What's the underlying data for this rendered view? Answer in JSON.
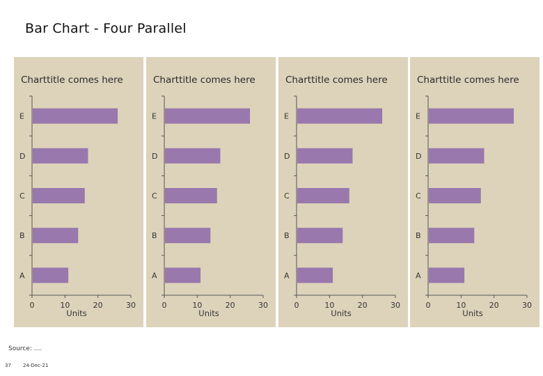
{
  "page": {
    "title": "Bar Chart - Four Parallel",
    "source": "Source: ....",
    "page_number": "37",
    "date": "24-Dec-21"
  },
  "colors": {
    "panel_bg": "#ddd3ba",
    "bar": "#9878ad",
    "axis": "#555555"
  },
  "chart_data": [
    {
      "type": "bar",
      "orientation": "horizontal",
      "title": "Charttitle comes here",
      "categories": [
        "A",
        "B",
        "C",
        "D",
        "E"
      ],
      "values": [
        11,
        14,
        16,
        17,
        26
      ],
      "xlabel": "Units",
      "ylabel": "",
      "xlim": [
        0,
        30
      ],
      "xticks": [
        0,
        10,
        20,
        30
      ],
      "grid": false
    },
    {
      "type": "bar",
      "orientation": "horizontal",
      "title": "Charttitle comes here",
      "categories": [
        "A",
        "B",
        "C",
        "D",
        "E"
      ],
      "values": [
        11,
        14,
        16,
        17,
        26
      ],
      "xlabel": "Units",
      "ylabel": "",
      "xlim": [
        0,
        30
      ],
      "xticks": [
        0,
        10,
        20,
        30
      ],
      "grid": false
    },
    {
      "type": "bar",
      "orientation": "horizontal",
      "title": "Charttitle comes here",
      "categories": [
        "A",
        "B",
        "C",
        "D",
        "E"
      ],
      "values": [
        11,
        14,
        16,
        17,
        26
      ],
      "xlabel": "Units",
      "ylabel": "",
      "xlim": [
        0,
        30
      ],
      "xticks": [
        0,
        10,
        20,
        30
      ],
      "grid": false
    },
    {
      "type": "bar",
      "orientation": "horizontal",
      "title": "Charttitle comes here",
      "categories": [
        "A",
        "B",
        "C",
        "D",
        "E"
      ],
      "values": [
        11,
        14,
        16,
        17,
        26
      ],
      "xlabel": "Units",
      "ylabel": "",
      "xlim": [
        0,
        30
      ],
      "xticks": [
        0,
        10,
        20,
        30
      ],
      "grid": false
    }
  ]
}
